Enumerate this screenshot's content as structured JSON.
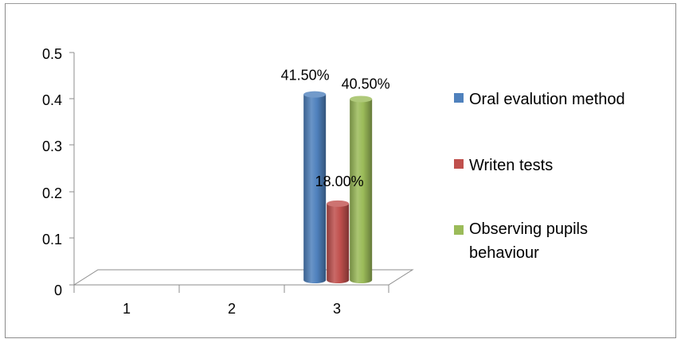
{
  "chart_data": {
    "type": "bar",
    "categories": [
      "1",
      "2",
      "3"
    ],
    "series": [
      {
        "name": "Oral evalution method",
        "color": "#4f81bd",
        "values": [
          0,
          0,
          0.415
        ],
        "data_labels": [
          "",
          "",
          "41.50%"
        ]
      },
      {
        "name": "Writen tests",
        "color": "#c0504d",
        "values": [
          0,
          0,
          0.18
        ],
        "data_labels": [
          "",
          "",
          "18.00%"
        ]
      },
      {
        "name": "Observing pupils behaviour",
        "color": "#9bbb59",
        "values": [
          0,
          0,
          0.405
        ],
        "data_labels": [
          "",
          "",
          "40.50%"
        ]
      }
    ],
    "y_ticks": [
      "0",
      "0.1",
      "0.2",
      "0.3",
      "0.4",
      "0.5"
    ],
    "ylim": [
      0,
      0.5
    ],
    "grid": false,
    "legend_position": "right",
    "legend_lines": [
      [
        "Oral evalution method"
      ],
      [
        "Writen tests"
      ],
      [
        "Observing pupils",
        "behaviour"
      ]
    ]
  }
}
